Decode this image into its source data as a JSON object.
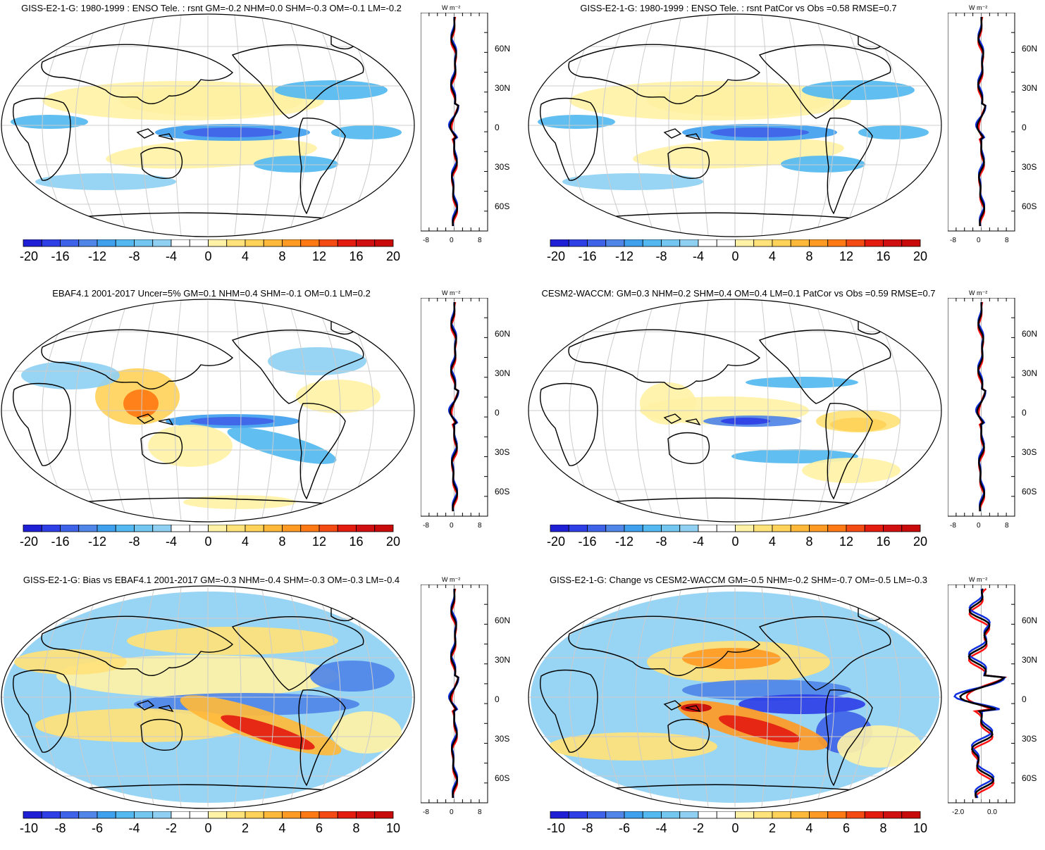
{
  "panels": [
    {
      "title": "GISS-E2-1-G: 1980-1999 : ENSO Tele. : rsnt GM=-0.2 NHM=0.0 SHM=-0.3 OM=-0.1 LM=-0.2",
      "colorbar_labels": [
        "-20",
        "-16",
        "-12",
        "-8",
        "-4",
        "0",
        "4",
        "8",
        "12",
        "16",
        "20"
      ],
      "zonal_x_labels": [
        "-8",
        "0",
        "8"
      ],
      "zonal_unit": "W m⁻²",
      "lat_labels": [
        "60N",
        "30N",
        "0",
        "30S",
        "60S"
      ],
      "style": "model"
    },
    {
      "title": "GISS-E2-1-G: 1980-1999 : ENSO Tele. : rsnt PatCor vs Obs =0.58 RMSE=0.7",
      "colorbar_labels": [
        "-20",
        "-16",
        "-12",
        "-8",
        "-4",
        "0",
        "4",
        "8",
        "12",
        "16",
        "20"
      ],
      "zonal_x_labels": [
        "-8",
        "0",
        "8"
      ],
      "zonal_unit": "W m⁻²",
      "lat_labels": [
        "60N",
        "30N",
        "0",
        "30S",
        "60S"
      ],
      "style": "model"
    },
    {
      "title": "EBAF4.1 2001-2017 Uncer=5% GM=0.1 NHM=0.4 SHM=-0.1 OM=0.1 LM=0.2",
      "colorbar_labels": [
        "-20",
        "-16",
        "-12",
        "-8",
        "-4",
        "0",
        "4",
        "8",
        "12",
        "16",
        "20"
      ],
      "zonal_x_labels": [
        "-8",
        "0",
        "8"
      ],
      "zonal_unit": "W m⁻²",
      "lat_labels": [
        "60N",
        "30N",
        "0",
        "30S",
        "60S"
      ],
      "style": "obs"
    },
    {
      "title": "CESM2-WACCM: GM=0.3 NHM=0.2 SHM=0.4 OM=0.4 LM=0.1 PatCor vs Obs =0.59 RMSE=0.7",
      "colorbar_labels": [
        "-20",
        "-16",
        "-12",
        "-8",
        "-4",
        "0",
        "4",
        "8",
        "12",
        "16",
        "20"
      ],
      "zonal_x_labels": [
        "-8",
        "0",
        "8"
      ],
      "zonal_unit": "W m⁻²",
      "lat_labels": [
        "60N",
        "30N",
        "0",
        "30S",
        "60S"
      ],
      "style": "cesm"
    },
    {
      "title": "GISS-E2-1-G: Bias vs EBAF4.1 2001-2017 GM=-0.3 NHM=-0.4 SHM=-0.3 OM=-0.3 LM=-0.4",
      "colorbar_labels": [
        "-10",
        "-8",
        "-6",
        "-4",
        "-2",
        "0",
        "2",
        "4",
        "6",
        "8",
        "10"
      ],
      "zonal_x_labels": [
        "-8",
        "0",
        "8"
      ],
      "zonal_unit": "W m⁻²",
      "lat_labels": [
        "60N",
        "30N",
        "0",
        "30S",
        "60S"
      ],
      "style": "bias"
    },
    {
      "title": "GISS-E2-1-G: Change vs CESM2-WACCM GM=-0.5 NHM=-0.2 SHM=-0.7 OM=-0.5 LM=-0.3",
      "colorbar_labels": [
        "-10",
        "-8",
        "-6",
        "-4",
        "-2",
        "0",
        "2",
        "4",
        "6",
        "8",
        "10"
      ],
      "zonal_x_labels": [
        "-2.0",
        "0.0"
      ],
      "zonal_unit": "W m⁻²",
      "lat_labels": [
        "60N",
        "30N",
        "0",
        "30S",
        "60S"
      ],
      "style": "change"
    }
  ],
  "colors": {
    "palette": [
      "#1f1fd6",
      "#2e3fe6",
      "#3f63e8",
      "#4f86e8",
      "#3fa0ee",
      "#54b9f0",
      "#8fd0f2",
      "#ffffff",
      "#ffffff",
      "#fff2a6",
      "#ffe27a",
      "#ffd25a",
      "#ffb93a",
      "#ff9a24",
      "#ff7a14",
      "#f44a14",
      "#e41c10",
      "#c80a0a"
    ],
    "land_outline": "#000000",
    "grid": "#cccccc",
    "zonal_red": "#ff1111",
    "zonal_blue": "#1030e0",
    "zonal_black": "#000000"
  }
}
